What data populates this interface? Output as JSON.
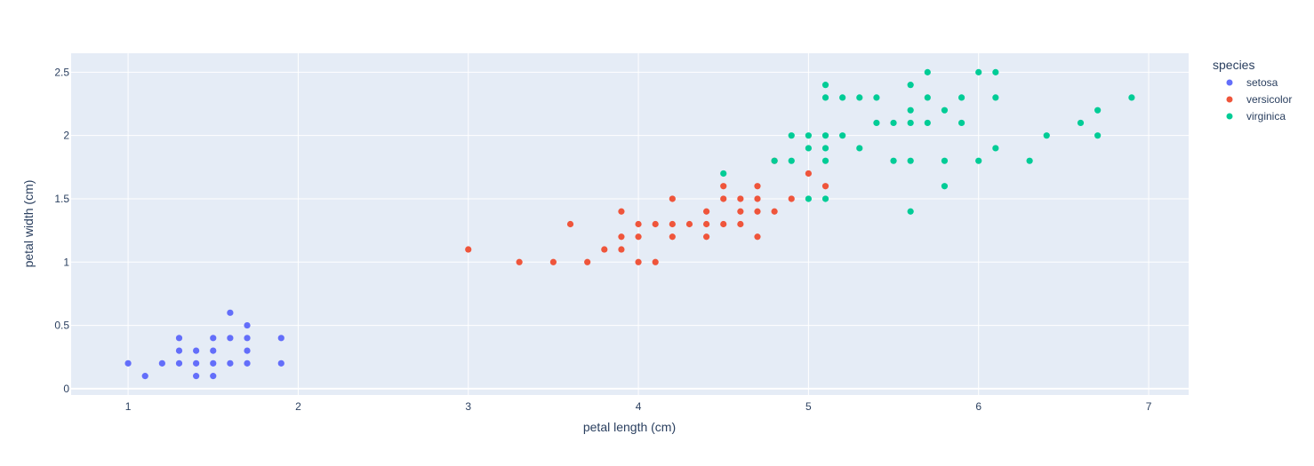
{
  "chart_data": {
    "type": "scatter",
    "title": "",
    "xlabel": "petal length (cm)",
    "ylabel": "petal width (cm)",
    "xlim": [
      0.665,
      7.235
    ],
    "ylim": [
      -0.05,
      2.65
    ],
    "x_ticks": [
      1,
      2,
      3,
      4,
      5,
      6,
      7
    ],
    "y_ticks": [
      0,
      0.5,
      1,
      1.5,
      2,
      2.5
    ],
    "x_tick_labels": [
      "1",
      "2",
      "3",
      "4",
      "5",
      "6",
      "7"
    ],
    "y_tick_labels": [
      "0",
      "0.5",
      "1",
      "1.5",
      "2",
      "2.5"
    ],
    "grid": true,
    "plot_background": "#e5ecf6",
    "legend": {
      "title": "species",
      "placement": "right"
    },
    "series": [
      {
        "name": "setosa",
        "color": "#636efa",
        "points": [
          [
            1.0,
            0.2
          ],
          [
            1.1,
            0.1
          ],
          [
            1.2,
            0.2
          ],
          [
            1.3,
            0.2
          ],
          [
            1.3,
            0.3
          ],
          [
            1.3,
            0.4
          ],
          [
            1.4,
            0.1
          ],
          [
            1.4,
            0.2
          ],
          [
            1.4,
            0.3
          ],
          [
            1.5,
            0.1
          ],
          [
            1.5,
            0.2
          ],
          [
            1.5,
            0.3
          ],
          [
            1.5,
            0.4
          ],
          [
            1.6,
            0.2
          ],
          [
            1.6,
            0.4
          ],
          [
            1.6,
            0.6
          ],
          [
            1.7,
            0.2
          ],
          [
            1.7,
            0.3
          ],
          [
            1.7,
            0.4
          ],
          [
            1.7,
            0.5
          ],
          [
            1.9,
            0.2
          ],
          [
            1.9,
            0.4
          ]
        ]
      },
      {
        "name": "versicolor",
        "color": "#ef553b",
        "points": [
          [
            3.0,
            1.1
          ],
          [
            3.3,
            1.0
          ],
          [
            3.5,
            1.0
          ],
          [
            3.6,
            1.3
          ],
          [
            3.7,
            1.0
          ],
          [
            3.8,
            1.1
          ],
          [
            3.9,
            1.1
          ],
          [
            3.9,
            1.2
          ],
          [
            3.9,
            1.4
          ],
          [
            4.0,
            1.0
          ],
          [
            4.0,
            1.2
          ],
          [
            4.0,
            1.3
          ],
          [
            4.1,
            1.0
          ],
          [
            4.1,
            1.3
          ],
          [
            4.2,
            1.2
          ],
          [
            4.2,
            1.3
          ],
          [
            4.2,
            1.5
          ],
          [
            4.3,
            1.3
          ],
          [
            4.4,
            1.2
          ],
          [
            4.4,
            1.3
          ],
          [
            4.4,
            1.4
          ],
          [
            4.5,
            1.3
          ],
          [
            4.5,
            1.5
          ],
          [
            4.5,
            1.6
          ],
          [
            4.6,
            1.3
          ],
          [
            4.6,
            1.4
          ],
          [
            4.6,
            1.5
          ],
          [
            4.7,
            1.2
          ],
          [
            4.7,
            1.4
          ],
          [
            4.7,
            1.5
          ],
          [
            4.7,
            1.6
          ],
          [
            4.8,
            1.4
          ],
          [
            4.8,
            1.8
          ],
          [
            4.9,
            1.5
          ],
          [
            5.0,
            1.7
          ],
          [
            5.1,
            1.6
          ]
        ]
      },
      {
        "name": "virginica",
        "color": "#00cc96",
        "points": [
          [
            4.5,
            1.7
          ],
          [
            4.8,
            1.8
          ],
          [
            4.9,
            1.8
          ],
          [
            4.9,
            2.0
          ],
          [
            5.0,
            1.5
          ],
          [
            5.0,
            1.9
          ],
          [
            5.0,
            2.0
          ],
          [
            5.1,
            1.5
          ],
          [
            5.1,
            1.8
          ],
          [
            5.1,
            1.9
          ],
          [
            5.1,
            2.0
          ],
          [
            5.1,
            2.3
          ],
          [
            5.1,
            2.4
          ],
          [
            5.2,
            2.0
          ],
          [
            5.2,
            2.3
          ],
          [
            5.3,
            1.9
          ],
          [
            5.3,
            2.3
          ],
          [
            5.4,
            2.1
          ],
          [
            5.4,
            2.3
          ],
          [
            5.5,
            1.8
          ],
          [
            5.5,
            2.1
          ],
          [
            5.6,
            1.4
          ],
          [
            5.6,
            1.8
          ],
          [
            5.6,
            2.1
          ],
          [
            5.6,
            2.2
          ],
          [
            5.6,
            2.4
          ],
          [
            5.7,
            2.1
          ],
          [
            5.7,
            2.3
          ],
          [
            5.7,
            2.5
          ],
          [
            5.8,
            1.6
          ],
          [
            5.8,
            1.8
          ],
          [
            5.8,
            2.2
          ],
          [
            5.9,
            2.1
          ],
          [
            5.9,
            2.3
          ],
          [
            6.0,
            1.8
          ],
          [
            6.0,
            2.5
          ],
          [
            6.1,
            1.9
          ],
          [
            6.1,
            2.3
          ],
          [
            6.1,
            2.5
          ],
          [
            6.3,
            1.8
          ],
          [
            6.4,
            2.0
          ],
          [
            6.6,
            2.1
          ],
          [
            6.7,
            2.0
          ],
          [
            6.7,
            2.2
          ],
          [
            6.9,
            2.3
          ]
        ]
      }
    ]
  }
}
